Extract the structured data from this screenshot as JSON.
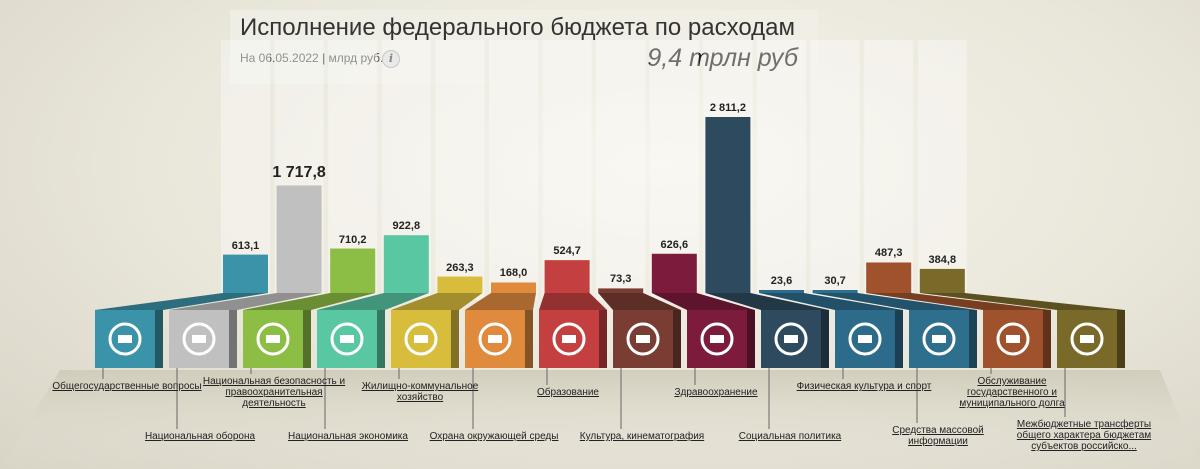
{
  "header": {
    "title": "Исполнение федерального бюджета по расходам",
    "subtitle": "На 06.05.2022 | млрд руб.",
    "info_glyph": "i",
    "total": "9,4 трлн руб"
  },
  "chart_data": {
    "type": "bar",
    "title": "Исполнение федерального бюджета по расходам",
    "unit": "млрд руб.",
    "categories": [
      "Общегосударственные вопросы",
      "Национальная оборона",
      "Национальная безопасность и правоохранительная деятельность",
      "Национальная экономика",
      "Жилищно-коммунальное хозяйство",
      "Охрана окружающей среды",
      "Образование",
      "Культура, кинематография",
      "Здравоохранение",
      "Социальная политика",
      "Физическая культура и спорт",
      "Средства массовой информации",
      "Обслуживание государственного и муниципального долга",
      "Межбюджетные трансферты общего характера бюджетам субъектов российско..."
    ],
    "values": [
      613.1,
      1717.8,
      710.2,
      922.8,
      263.3,
      168.0,
      524.7,
      73.3,
      626.6,
      2811.2,
      23.6,
      30.7,
      487.3,
      384.8
    ],
    "value_labels": [
      "613,1",
      "1 717,8",
      "710,2",
      "922,8",
      "263,3",
      "168,0",
      "524,7",
      "73,3",
      "626,6",
      "2 811,2",
      "23,6",
      "30,7",
      "487,3",
      "384,8"
    ],
    "colors": [
      "#3a93a8",
      "#c0c0c0",
      "#8cbd44",
      "#58c7a2",
      "#d8bd3c",
      "#e08a3e",
      "#c44040",
      "#7a3d33",
      "#7d1b3c",
      "#2e4a5e",
      "#2d6b8b",
      "#2f6f8e",
      "#a0522d",
      "#7a6a2a"
    ],
    "icons": [
      "government-building-icon",
      "shield-icon",
      "handcuffs-icon",
      "bank-coins-icon",
      "pipe-valve-icon",
      "trees-icon",
      "graduation-cap-icon",
      "theater-masks-icon",
      "medicine-caduceus-icon",
      "people-group-icon",
      "soccer-ball-icon",
      "newspaper-icon",
      "hand-coins-icon",
      "money-bag-icon"
    ],
    "ylim": [
      0,
      2811.2
    ]
  }
}
